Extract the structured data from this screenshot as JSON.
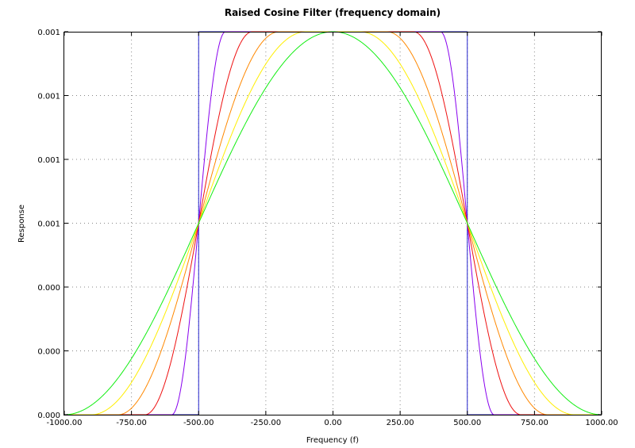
{
  "chart_data": {
    "type": "line",
    "title": "Raised Cosine Filter (frequency domain)",
    "xlabel": "Frequency (f)",
    "ylabel": "Response",
    "xlim": [
      -1000,
      1000
    ],
    "ylim": [
      0,
      0.001
    ],
    "x_ticks": [
      "-1000.00",
      "-750.00",
      "-500.00",
      "-250.00",
      "0.00",
      "250.00",
      "500.00",
      "750.00",
      "1000.00"
    ],
    "y_ticks": [
      "0.000",
      "0.000",
      "0.000",
      "0.001",
      "0.001",
      "0.001",
      "0.001"
    ],
    "grid": true,
    "legend": "none",
    "formula": {
      "symbol_period": 0.001,
      "cutoff_frequency": 500
    },
    "series": [
      {
        "beta": 0.0,
        "color": "#2222cc"
      },
      {
        "beta": 0.2,
        "color": "#8800ee"
      },
      {
        "beta": 0.4,
        "color": "#ee1111"
      },
      {
        "beta": 0.6,
        "color": "#ff8800"
      },
      {
        "beta": 0.8,
        "color": "#ffee00"
      },
      {
        "beta": 1.0,
        "color": "#11ee11"
      }
    ]
  }
}
